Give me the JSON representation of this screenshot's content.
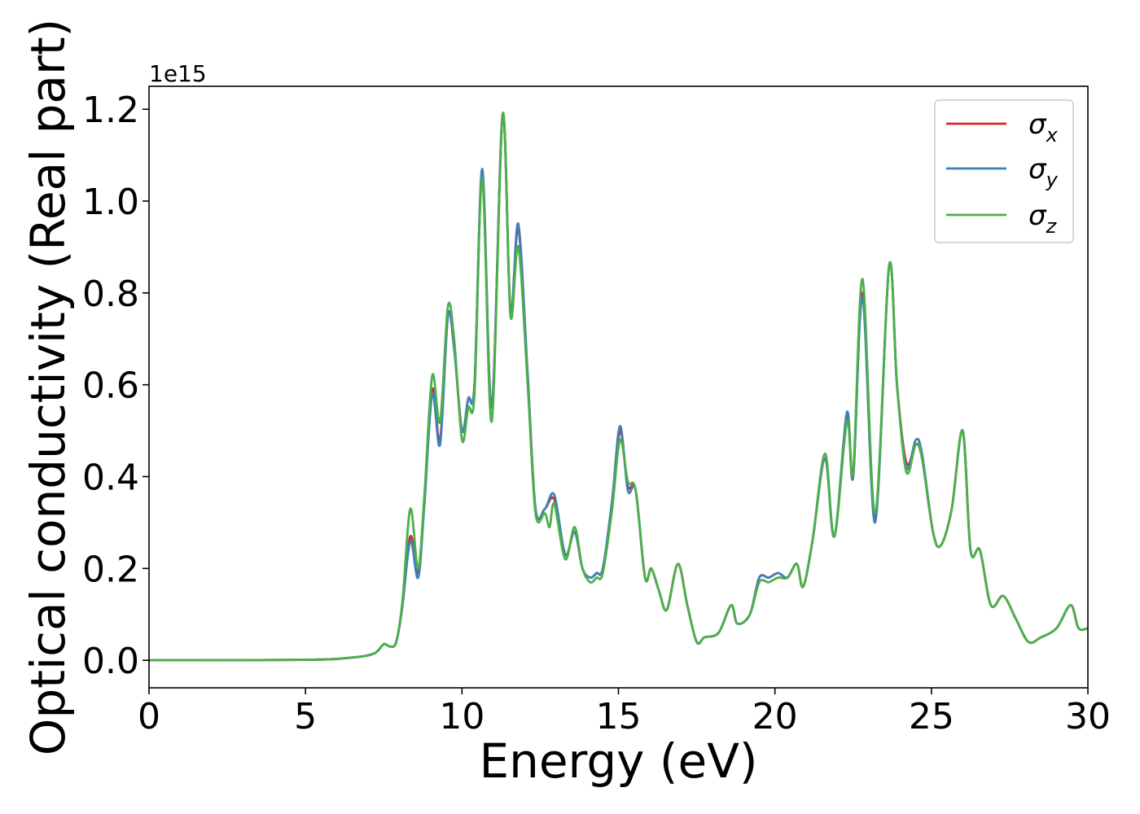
{
  "chart_data": {
    "type": "line",
    "xlabel": "Energy (eV)",
    "ylabel": "Optical conductivity (Real part)",
    "offset_text": "1e15",
    "xlim": [
      0,
      30
    ],
    "ylim": [
      -0.06,
      1.25
    ],
    "x_ticks": [
      0,
      5,
      10,
      15,
      20,
      25,
      30
    ],
    "y_ticks": [
      0.0,
      0.2,
      0.4,
      0.6,
      0.8,
      1.0,
      1.2
    ],
    "x_tick_labels": [
      "0",
      "5",
      "10",
      "15",
      "20",
      "25",
      "30"
    ],
    "y_tick_labels": [
      "0.0",
      "0.2",
      "0.4",
      "0.6",
      "0.8",
      "1.0",
      "1.2"
    ],
    "legend_position": "top-right",
    "grid": false,
    "series": [
      {
        "name": "σx",
        "sym": "σ",
        "sub": "x",
        "color": "#d62728",
        "points": [
          [
            0,
            0
          ],
          [
            5,
            0.001
          ],
          [
            6.5,
            0.006
          ],
          [
            7.2,
            0.015
          ],
          [
            7.5,
            0.035
          ],
          [
            7.7,
            0.03
          ],
          [
            7.9,
            0.04
          ],
          [
            8.1,
            0.12
          ],
          [
            8.35,
            0.27
          ],
          [
            8.6,
            0.19
          ],
          [
            8.8,
            0.35
          ],
          [
            9.05,
            0.59
          ],
          [
            9.3,
            0.48
          ],
          [
            9.55,
            0.75
          ],
          [
            9.75,
            0.68
          ],
          [
            10.0,
            0.5
          ],
          [
            10.2,
            0.57
          ],
          [
            10.4,
            0.6
          ],
          [
            10.65,
            1.06
          ],
          [
            10.95,
            0.55
          ],
          [
            11.3,
            1.19
          ],
          [
            11.55,
            0.76
          ],
          [
            11.8,
            0.94
          ],
          [
            12.1,
            0.62
          ],
          [
            12.35,
            0.33
          ],
          [
            12.65,
            0.33
          ],
          [
            12.95,
            0.35
          ],
          [
            13.3,
            0.23
          ],
          [
            13.6,
            0.28
          ],
          [
            13.85,
            0.2
          ],
          [
            14.1,
            0.18
          ],
          [
            14.3,
            0.19
          ],
          [
            14.5,
            0.2
          ],
          [
            14.8,
            0.34
          ],
          [
            15.05,
            0.5
          ],
          [
            15.3,
            0.38
          ],
          [
            15.55,
            0.37
          ],
          [
            15.85,
            0.18
          ],
          [
            16.05,
            0.2
          ],
          [
            16.3,
            0.15
          ],
          [
            16.55,
            0.11
          ],
          [
            16.9,
            0.21
          ],
          [
            17.2,
            0.12
          ],
          [
            17.5,
            0.04
          ],
          [
            17.75,
            0.05
          ],
          [
            18.2,
            0.06
          ],
          [
            18.6,
            0.12
          ],
          [
            18.8,
            0.08
          ],
          [
            19.2,
            0.1
          ],
          [
            19.5,
            0.18
          ],
          [
            19.8,
            0.18
          ],
          [
            20.1,
            0.19
          ],
          [
            20.4,
            0.18
          ],
          [
            20.7,
            0.21
          ],
          [
            20.9,
            0.16
          ],
          [
            21.2,
            0.26
          ],
          [
            21.6,
            0.44
          ],
          [
            21.9,
            0.27
          ],
          [
            22.3,
            0.53
          ],
          [
            22.5,
            0.4
          ],
          [
            22.8,
            0.8
          ],
          [
            23.2,
            0.31
          ],
          [
            23.65,
            0.86
          ],
          [
            23.9,
            0.6
          ],
          [
            24.2,
            0.43
          ],
          [
            24.5,
            0.47
          ],
          [
            24.7,
            0.44
          ],
          [
            25.05,
            0.28
          ],
          [
            25.3,
            0.25
          ],
          [
            25.65,
            0.33
          ],
          [
            26.0,
            0.5
          ],
          [
            26.25,
            0.24
          ],
          [
            26.55,
            0.24
          ],
          [
            26.9,
            0.12
          ],
          [
            27.3,
            0.14
          ],
          [
            27.7,
            0.09
          ],
          [
            28.1,
            0.04
          ],
          [
            28.5,
            0.05
          ],
          [
            29.0,
            0.07
          ],
          [
            29.45,
            0.12
          ],
          [
            29.7,
            0.07
          ],
          [
            30,
            0.07
          ]
        ]
      },
      {
        "name": "σy",
        "sym": "σ",
        "sub": "y",
        "color": "#3f7fb8",
        "points": [
          [
            0,
            0
          ],
          [
            5,
            0.001
          ],
          [
            6.5,
            0.006
          ],
          [
            7.2,
            0.015
          ],
          [
            7.5,
            0.035
          ],
          [
            7.7,
            0.03
          ],
          [
            7.9,
            0.04
          ],
          [
            8.1,
            0.12
          ],
          [
            8.35,
            0.26
          ],
          [
            8.6,
            0.18
          ],
          [
            8.8,
            0.34
          ],
          [
            9.05,
            0.58
          ],
          [
            9.3,
            0.47
          ],
          [
            9.55,
            0.75
          ],
          [
            9.75,
            0.68
          ],
          [
            10.0,
            0.5
          ],
          [
            10.2,
            0.57
          ],
          [
            10.4,
            0.6
          ],
          [
            10.65,
            1.07
          ],
          [
            10.95,
            0.55
          ],
          [
            11.3,
            1.19
          ],
          [
            11.55,
            0.76
          ],
          [
            11.8,
            0.95
          ],
          [
            12.1,
            0.62
          ],
          [
            12.35,
            0.33
          ],
          [
            12.65,
            0.33
          ],
          [
            12.95,
            0.36
          ],
          [
            13.3,
            0.23
          ],
          [
            13.6,
            0.28
          ],
          [
            13.85,
            0.2
          ],
          [
            14.1,
            0.18
          ],
          [
            14.3,
            0.19
          ],
          [
            14.5,
            0.2
          ],
          [
            14.8,
            0.35
          ],
          [
            15.05,
            0.51
          ],
          [
            15.3,
            0.37
          ],
          [
            15.55,
            0.37
          ],
          [
            15.85,
            0.18
          ],
          [
            16.05,
            0.2
          ],
          [
            16.3,
            0.15
          ],
          [
            16.55,
            0.11
          ],
          [
            16.9,
            0.21
          ],
          [
            17.2,
            0.12
          ],
          [
            17.5,
            0.04
          ],
          [
            17.75,
            0.05
          ],
          [
            18.2,
            0.06
          ],
          [
            18.6,
            0.12
          ],
          [
            18.8,
            0.08
          ],
          [
            19.2,
            0.1
          ],
          [
            19.5,
            0.18
          ],
          [
            19.8,
            0.18
          ],
          [
            20.1,
            0.19
          ],
          [
            20.4,
            0.18
          ],
          [
            20.7,
            0.21
          ],
          [
            20.9,
            0.16
          ],
          [
            21.2,
            0.26
          ],
          [
            21.6,
            0.44
          ],
          [
            21.9,
            0.27
          ],
          [
            22.3,
            0.54
          ],
          [
            22.5,
            0.4
          ],
          [
            22.8,
            0.79
          ],
          [
            23.2,
            0.3
          ],
          [
            23.65,
            0.86
          ],
          [
            23.9,
            0.6
          ],
          [
            24.2,
            0.42
          ],
          [
            24.5,
            0.48
          ],
          [
            24.7,
            0.45
          ],
          [
            25.05,
            0.28
          ],
          [
            25.3,
            0.25
          ],
          [
            25.65,
            0.33
          ],
          [
            26.0,
            0.5
          ],
          [
            26.25,
            0.24
          ],
          [
            26.55,
            0.24
          ],
          [
            26.9,
            0.12
          ],
          [
            27.3,
            0.14
          ],
          [
            27.7,
            0.09
          ],
          [
            28.1,
            0.04
          ],
          [
            28.5,
            0.05
          ],
          [
            29.0,
            0.07
          ],
          [
            29.45,
            0.12
          ],
          [
            29.7,
            0.07
          ],
          [
            30,
            0.07
          ]
        ]
      },
      {
        "name": "σz",
        "sym": "σ",
        "sub": "z",
        "color": "#4daf4a",
        "points": [
          [
            0,
            0
          ],
          [
            5,
            0.001
          ],
          [
            6.5,
            0.006
          ],
          [
            7.2,
            0.015
          ],
          [
            7.5,
            0.035
          ],
          [
            7.7,
            0.03
          ],
          [
            7.9,
            0.04
          ],
          [
            8.1,
            0.13
          ],
          [
            8.35,
            0.33
          ],
          [
            8.6,
            0.2
          ],
          [
            8.8,
            0.36
          ],
          [
            9.05,
            0.62
          ],
          [
            9.3,
            0.52
          ],
          [
            9.55,
            0.77
          ],
          [
            9.75,
            0.7
          ],
          [
            10.0,
            0.48
          ],
          [
            10.2,
            0.55
          ],
          [
            10.4,
            0.58
          ],
          [
            10.65,
            1.05
          ],
          [
            10.95,
            0.52
          ],
          [
            11.3,
            1.19
          ],
          [
            11.55,
            0.75
          ],
          [
            11.8,
            0.9
          ],
          [
            12.1,
            0.6
          ],
          [
            12.35,
            0.32
          ],
          [
            12.65,
            0.32
          ],
          [
            12.8,
            0.29
          ],
          [
            12.95,
            0.34
          ],
          [
            13.3,
            0.22
          ],
          [
            13.6,
            0.29
          ],
          [
            13.85,
            0.2
          ],
          [
            14.1,
            0.17
          ],
          [
            14.3,
            0.18
          ],
          [
            14.5,
            0.19
          ],
          [
            14.8,
            0.33
          ],
          [
            15.05,
            0.48
          ],
          [
            15.3,
            0.39
          ],
          [
            15.55,
            0.37
          ],
          [
            15.85,
            0.18
          ],
          [
            16.05,
            0.2
          ],
          [
            16.3,
            0.15
          ],
          [
            16.55,
            0.11
          ],
          [
            16.9,
            0.21
          ],
          [
            17.2,
            0.12
          ],
          [
            17.5,
            0.04
          ],
          [
            17.75,
            0.05
          ],
          [
            18.2,
            0.06
          ],
          [
            18.6,
            0.12
          ],
          [
            18.8,
            0.08
          ],
          [
            19.2,
            0.1
          ],
          [
            19.5,
            0.17
          ],
          [
            19.8,
            0.17
          ],
          [
            20.1,
            0.18
          ],
          [
            20.4,
            0.18
          ],
          [
            20.7,
            0.21
          ],
          [
            20.9,
            0.16
          ],
          [
            21.2,
            0.26
          ],
          [
            21.6,
            0.45
          ],
          [
            21.9,
            0.27
          ],
          [
            22.3,
            0.52
          ],
          [
            22.5,
            0.41
          ],
          [
            22.8,
            0.83
          ],
          [
            23.2,
            0.32
          ],
          [
            23.65,
            0.86
          ],
          [
            23.9,
            0.6
          ],
          [
            24.2,
            0.41
          ],
          [
            24.5,
            0.47
          ],
          [
            24.7,
            0.44
          ],
          [
            25.05,
            0.28
          ],
          [
            25.3,
            0.25
          ],
          [
            25.65,
            0.33
          ],
          [
            26.0,
            0.5
          ],
          [
            26.25,
            0.24
          ],
          [
            26.55,
            0.24
          ],
          [
            26.9,
            0.12
          ],
          [
            27.3,
            0.14
          ],
          [
            27.7,
            0.09
          ],
          [
            28.1,
            0.04
          ],
          [
            28.5,
            0.05
          ],
          [
            29.0,
            0.07
          ],
          [
            29.45,
            0.12
          ],
          [
            29.7,
            0.07
          ],
          [
            30,
            0.07
          ]
        ]
      }
    ]
  }
}
